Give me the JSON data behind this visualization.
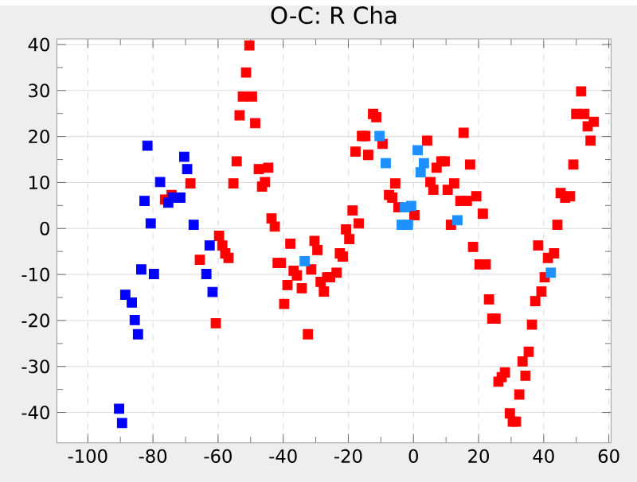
{
  "chart_data": {
    "type": "scatter",
    "title": "O-C: R Cha",
    "xlim": [
      -109.5,
      60.7
    ],
    "ylim": [
      -46.6,
      41.2
    ],
    "xticks": [
      -100,
      -80,
      -60,
      -40,
      -20,
      0,
      20,
      40,
      60
    ],
    "yticks": [
      -40,
      -30,
      -20,
      -10,
      0,
      10,
      20,
      30,
      40
    ],
    "grid": true,
    "marker": "square",
    "series": [
      {
        "color": "#ff0000",
        "x": [
          -50.4,
          -51.4,
          -52.4,
          -49.6,
          -53.4,
          -48.6,
          -54.3,
          -68.5,
          -55.3,
          -74.3,
          -76.3,
          -59.7,
          -58.7,
          -57.8,
          -56.8,
          -65.6,
          -60.7,
          -47.5,
          -44.6,
          -45.6,
          -46.5,
          -43.6,
          -42.6,
          -37.8,
          -30.4,
          -29.5,
          -41.7,
          -40.7,
          -36.8,
          -35.8,
          -31.4,
          -38.7,
          -34.3,
          -28.5,
          -26.5,
          -25.6,
          -23.6,
          -27.5,
          -39.7,
          -32.4,
          -22.6,
          -21.7,
          -19.7,
          -20.7,
          -16.8,
          -18.7,
          -12.4,
          -11.4,
          -15.8,
          -14.8,
          -17.8,
          -13.9,
          -9.5,
          4.2,
          8.6,
          7.1,
          -5.6,
          5.2,
          6.1,
          -7.5,
          -6.5,
          -4.6,
          0.3,
          51.5,
          50.0,
          52.5,
          55.4,
          53.5,
          54.4,
          15.4,
          49.1,
          17.4,
          9.6,
          12.5,
          10.5,
          14.4,
          16.4,
          19.3,
          21.3,
          11.5,
          45.2,
          46.6,
          48.1,
          44.2,
          18.3,
          38.3,
          41.3,
          43.2,
          20.3,
          22.2,
          40.3,
          39.3,
          23.2,
          37.4,
          24.2,
          25.2,
          36.4,
          35.4,
          33.5,
          28.1,
          27.1,
          26.1,
          34.4,
          32.5,
          29.6,
          30.5,
          31.5
        ],
        "values": [
          39.8,
          33.9,
          28.7,
          28.7,
          24.6,
          22.9,
          14.6,
          9.8,
          9.8,
          7.3,
          6.3,
          -1.6,
          -3.7,
          -5.4,
          -6.4,
          -6.8,
          -20.6,
          12.9,
          13.2,
          10.1,
          9.1,
          2.2,
          0.4,
          -3.3,
          -2.7,
          -4.7,
          -7.5,
          -7.5,
          -9.2,
          -10.2,
          -8.9,
          -12.3,
          -13.0,
          -11.6,
          -10.6,
          -10.6,
          -9.6,
          -13.7,
          -16.4,
          -23.0,
          -5.4,
          -6.1,
          -2.3,
          -0.2,
          1.1,
          3.9,
          24.9,
          24.2,
          20.1,
          20.1,
          16.7,
          16.0,
          18.4,
          19.1,
          14.6,
          13.2,
          9.8,
          10.1,
          8.4,
          7.3,
          6.7,
          4.6,
          2.9,
          29.8,
          24.9,
          24.9,
          23.2,
          22.2,
          19.1,
          20.8,
          13.9,
          13.9,
          14.6,
          9.8,
          8.4,
          6.0,
          6.0,
          7.0,
          3.2,
          0.8,
          7.7,
          6.7,
          7.0,
          0.8,
          -4.0,
          -3.7,
          -6.4,
          -5.4,
          -7.8,
          -7.8,
          -10.6,
          -13.7,
          -15.4,
          -15.8,
          -19.6,
          -19.6,
          -20.9,
          -26.8,
          -28.9,
          -31.3,
          -32.3,
          -33.3,
          -32.0,
          -36.1,
          -40.2,
          -42.0,
          -42.0
        ]
      },
      {
        "color": "#0000ff",
        "x": [
          -81.7,
          -70.4,
          -69.5,
          -77.8,
          -82.6,
          -75.3,
          -73.9,
          -71.6,
          -80.7,
          -67.5,
          -62.6,
          -83.6,
          -79.7,
          -63.6,
          -61.7,
          -88.5,
          -87.5,
          -86.5,
          -85.6,
          -84.6,
          -90.4,
          -89.5
        ],
        "values": [
          18.0,
          15.6,
          12.9,
          10.1,
          6.0,
          5.6,
          6.7,
          6.7,
          1.1,
          0.8,
          -3.7,
          -8.9,
          -9.9,
          -9.9,
          -13.8,
          -14.4,
          null,
          -16.1,
          -19.9,
          -23.0,
          -39.2,
          -42.3
        ]
      },
      {
        "color": "#1e90ff",
        "x": [
          -33.4,
          -10.4,
          -8.5,
          1.3,
          3.2,
          2.2,
          -2.6,
          -0.7,
          -3.6,
          -1.7,
          13.5,
          42.2
        ],
        "values": [
          -7.1,
          20.1,
          14.2,
          17.0,
          14.2,
          12.2,
          4.6,
          4.9,
          0.8,
          0.8,
          1.8,
          -9.6
        ]
      }
    ]
  }
}
